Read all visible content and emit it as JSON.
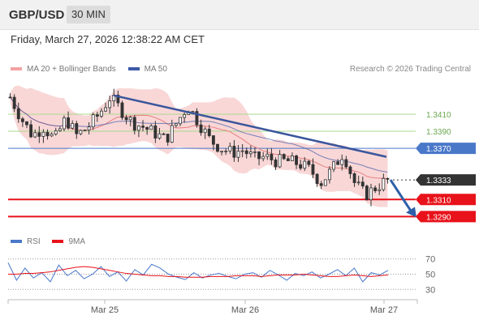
{
  "header": {
    "symbol": "GBP/USD",
    "timeframe": "30 MIN"
  },
  "datetime": "Friday, March 27, 2026 12:38:22 AM CET",
  "legend": {
    "ma20_label": "MA 20 + Bollinger Bands",
    "ma50_label": "MA 50",
    "rsi_label": "RSI",
    "ma9_label": "9MA",
    "credit": "Research © 2026 Trading Central"
  },
  "colors": {
    "bollinger": "#f4b6b6",
    "ma20": "#e88080",
    "ma50": "#3d5aa8",
    "trendline": "#3a569c",
    "resistance": "#a8d88a",
    "pivot": "#4a78c9",
    "support": "#e8121a",
    "last": "#333333",
    "rsi": "#4a78c9",
    "rsi_ma": "#e8121a"
  },
  "chart_data": {
    "type": "candlestick",
    "x_ticks": [
      "Mar 25",
      "Mar 26",
      "Mar 27"
    ],
    "ylim": [
      1.3278,
      1.3447
    ],
    "levels": [
      {
        "label": "1.3410",
        "value": 1.341,
        "kind": "resistance"
      },
      {
        "label": "1.3390",
        "value": 1.339,
        "kind": "resistance"
      },
      {
        "label": "1.3370",
        "value": 1.337,
        "kind": "pivot"
      },
      {
        "label": "1.3333",
        "value": 1.3333,
        "kind": "last"
      },
      {
        "label": "1.3310",
        "value": 1.331,
        "kind": "support"
      },
      {
        "label": "1.3290",
        "value": 1.329,
        "kind": "support"
      }
    ],
    "close_trend": [
      1.343,
      1.3405,
      1.3385,
      1.3395,
      1.338,
      1.3405,
      1.3385,
      1.3395,
      1.341,
      1.343,
      1.3415,
      1.34,
      1.3395,
      1.3388,
      1.338,
      1.34,
      1.342,
      1.34,
      1.338,
      1.337,
      1.3365,
      1.3368,
      1.3358,
      1.336,
      1.3355,
      1.3355,
      1.3352,
      1.3345,
      1.333,
      1.3345,
      1.3365,
      1.333,
      1.3315,
      1.3325,
      1.3333
    ],
    "trendline": {
      "start": 1.3432,
      "end": 1.336
    },
    "rsi": {
      "ticks": [
        70,
        50,
        30
      ],
      "ylim": [
        25,
        75
      ],
      "rsi_values": [
        65,
        42,
        58,
        45,
        52,
        40,
        62,
        48,
        55,
        44,
        50,
        60,
        47,
        53,
        41,
        56,
        49,
        63,
        58,
        50,
        46,
        43,
        52,
        45,
        49,
        51,
        47,
        44,
        50,
        52,
        46,
        55,
        49,
        42,
        51,
        48,
        53,
        45,
        50,
        56,
        48,
        58,
        40,
        52,
        49,
        55
      ],
      "ma_values": [
        50,
        50,
        51,
        51,
        52,
        53,
        55,
        57,
        59,
        60,
        59,
        57,
        55,
        53,
        51,
        50,
        49,
        48,
        48,
        47,
        47,
        46,
        46,
        46,
        47,
        47,
        47,
        48,
        48,
        48,
        47,
        48,
        49,
        49,
        49,
        50,
        49,
        48,
        47,
        47,
        48,
        49,
        48,
        47,
        48,
        49
      ]
    }
  }
}
